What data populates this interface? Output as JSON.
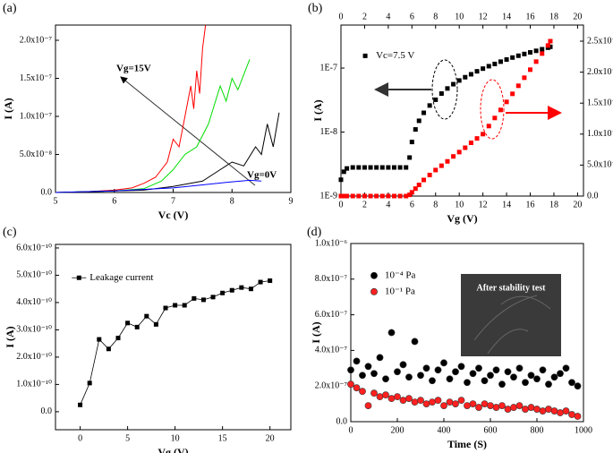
{
  "chart_data": [
    {
      "type": "line",
      "panel_label": "(a)",
      "xlabel": "Vc (V)",
      "ylabel": "I (A)",
      "xlim": [
        5,
        9
      ],
      "ylim": [
        0,
        2.2e-07
      ],
      "xticks": [
        5,
        6,
        7,
        8,
        9
      ],
      "yticks": [
        {
          "value": 0,
          "label": "0.0"
        },
        {
          "value": 5e-08,
          "label": "5.0x10⁻⁸"
        },
        {
          "value": 1e-07,
          "label": "1.0x10⁻⁷"
        },
        {
          "value": 1.5e-07,
          "label": "1.5x10⁻⁷"
        },
        {
          "value": 2e-07,
          "label": "2.0x10⁻⁷"
        }
      ],
      "series": [
        {
          "color": "#ff0000",
          "x": [
            5,
            5.5,
            6,
            6.3,
            6.5,
            6.7,
            6.9,
            7.0,
            7.1,
            7.2,
            7.3,
            7.35,
            7.4,
            7.45,
            7.5,
            7.55
          ],
          "values": [
            0,
            1e-09,
            3e-09,
            6e-09,
            1.2e-08,
            2e-08,
            4e-08,
            7e-08,
            6e-08,
            1e-07,
            1.4e-07,
            1.1e-07,
            1.6e-07,
            1.3e-07,
            1.9e-07,
            2.2e-07
          ]
        },
        {
          "color": "#00dd00",
          "x": [
            5,
            6,
            6.5,
            6.8,
            7.0,
            7.2,
            7.4,
            7.6,
            7.8,
            7.9,
            8.0,
            8.1,
            8.2,
            8.3
          ],
          "values": [
            0,
            2e-09,
            5e-09,
            1.5e-08,
            3e-08,
            5e-08,
            6e-08,
            9e-08,
            1.4e-07,
            1.2e-07,
            1.5e-07,
            1.35e-07,
            1.55e-07,
            1.75e-07
          ]
        },
        {
          "color": "#000000",
          "x": [
            5,
            6.5,
            7,
            7.5,
            7.8,
            8.0,
            8.2,
            8.4,
            8.5,
            8.6,
            8.7,
            8.8
          ],
          "values": [
            0,
            3e-09,
            8e-09,
            1.5e-08,
            3e-08,
            4e-08,
            3.5e-08,
            6e-08,
            5e-08,
            9e-08,
            6e-08,
            1.05e-07
          ]
        },
        {
          "color": "#0000ff",
          "x": [
            5,
            6,
            7,
            7.5,
            8,
            8.3,
            8.5
          ],
          "values": [
            0,
            2e-09,
            6e-09,
            1e-08,
            1.4e-08,
            1.6e-08,
            1.5e-08
          ]
        }
      ],
      "annotations": [
        "Vg=15V",
        "Vg=0V"
      ]
    },
    {
      "type": "scatter",
      "panel_label": "(b)",
      "xlabel": "Vg (V)",
      "ylabel": "I (A)",
      "top_axis": true,
      "ylog": true,
      "xlim": [
        0,
        20.5
      ],
      "ylim": [
        1e-09,
        4.7e-07
      ],
      "y2lim": [
        0,
        2.76e-07
      ],
      "xticks": [
        0,
        2,
        4,
        6,
        8,
        10,
        12,
        14,
        16,
        18,
        20
      ],
      "yticks": [
        {
          "value": 1e-09,
          "label": "1E-9"
        },
        {
          "value": 1e-08,
          "label": "1E-8"
        },
        {
          "value": 1e-07,
          "label": "1E-7"
        }
      ],
      "y2ticks": [
        {
          "value": 0,
          "label": "0.0"
        },
        {
          "value": 5e-08,
          "label": "5.0x10⁻⁸"
        },
        {
          "value": 1e-07,
          "label": "1.0x10⁻⁷"
        },
        {
          "value": 1.5e-07,
          "label": "1.5x10⁻⁷"
        },
        {
          "value": 2e-07,
          "label": "2.0x10⁻⁷"
        },
        {
          "value": 2.5e-07,
          "label": "2.5x10⁻⁷"
        }
      ],
      "x": [
        0,
        0.25,
        0.5,
        1,
        1.5,
        2,
        2.5,
        3,
        3.5,
        4,
        4.5,
        5,
        5.5,
        5.8,
        6,
        6.3,
        6.6,
        7,
        7.5,
        8,
        8.5,
        9,
        9.5,
        10,
        10.5,
        11,
        11.5,
        12,
        12.5,
        13,
        13.5,
        14,
        14.5,
        15,
        15.5,
        16,
        16.5,
        17,
        17.5,
        17.7
      ],
      "legend": "upper left",
      "series": [
        {
          "name": "Vc=7.5 V",
          "color": "#000000",
          "marker": "square",
          "values": [
            1.8e-09,
            2.4e-09,
            2.7e-09,
            2.8e-09,
            2.8e-09,
            2.8e-09,
            2.8e-09,
            2.8e-09,
            2.8e-09,
            2.8e-09,
            2.8e-09,
            2.8e-09,
            2.8e-09,
            4e-09,
            7e-09,
            1.1e-08,
            1.5e-08,
            2e-08,
            2.6e-08,
            3.2e-08,
            4e-08,
            4.8e-08,
            5.6e-08,
            6.4e-08,
            7.2e-08,
            8e-08,
            8.9e-08,
            9.8e-08,
            1.07e-07,
            1.16e-07,
            1.26e-07,
            1.36e-07,
            1.46e-07,
            1.56e-07,
            1.66e-07,
            1.76e-07,
            1.86e-07,
            1.97e-07,
            2.08e-07,
            2.15e-07
          ]
        },
        {
          "color": "#ff0000",
          "marker": "square",
          "axis": "y2",
          "values": [
            0,
            0,
            0,
            0,
            0,
            0,
            0,
            0,
            0,
            0,
            0,
            0,
            0,
            2e-09,
            6e-09,
            1.2e-08,
            1.8e-08,
            2.6e-08,
            3.4e-08,
            4.2e-08,
            4.9e-08,
            5.6e-08,
            6.4e-08,
            7.1e-08,
            7.8e-08,
            8.6e-08,
            9.3e-08,
            1e-07,
            1.13e-07,
            1.26e-07,
            1.39e-07,
            1.52e-07,
            1.65e-07,
            1.78e-07,
            1.91e-07,
            2.04e-07,
            2.17e-07,
            2.3e-07,
            2.43e-07,
            2.5e-07
          ]
        }
      ]
    },
    {
      "type": "line",
      "panel_label": "(c)",
      "xlabel": "Vg (V)",
      "ylabel": "I (A)",
      "xlim": [
        -2.6,
        22.2
      ],
      "ylim": [
        -6.6e-11,
        6.13e-10
      ],
      "xticks": [
        0,
        5,
        10,
        15,
        20
      ],
      "yticks": [
        {
          "value": 0,
          "label": "0.0"
        },
        {
          "value": 1e-10,
          "label": "1.0x10⁻¹⁰"
        },
        {
          "value": 2e-10,
          "label": "2.0x10⁻¹⁰"
        },
        {
          "value": 3e-10,
          "label": "3.0x10⁻¹⁰"
        },
        {
          "value": 4e-10,
          "label": "4.0x10⁻¹⁰"
        },
        {
          "value": 5e-10,
          "label": "5.0x10⁻¹⁰"
        },
        {
          "value": 6e-10,
          "label": "6.0x10⁻¹⁰"
        }
      ],
      "x": [
        0,
        1,
        2,
        3,
        4,
        5,
        6,
        7,
        8,
        9,
        10,
        11,
        12,
        13,
        14,
        15,
        16,
        17,
        18,
        19,
        20
      ],
      "legend": "upper left",
      "series": [
        {
          "name": "Leakage current",
          "color": "#000000",
          "marker": "square",
          "values": [
            2.5e-11,
            1.05e-10,
            2.65e-10,
            2.3e-10,
            2.7e-10,
            3.25e-10,
            3.1e-10,
            3.5e-10,
            3.2e-10,
            3.8e-10,
            3.9e-10,
            3.9e-10,
            4.15e-10,
            4.1e-10,
            4.2e-10,
            4.35e-10,
            4.45e-10,
            4.55e-10,
            4.5e-10,
            4.75e-10,
            4.8e-10
          ]
        }
      ]
    },
    {
      "type": "scatter",
      "panel_label": "(d)",
      "xlabel": "Time (S)",
      "ylabel": "I (A)",
      "xlim": [
        0,
        1000
      ],
      "ylim": [
        0,
        1e-06
      ],
      "xticks": [
        0,
        200,
        400,
        600,
        800,
        1000
      ],
      "yticks": [
        {
          "value": 0,
          "label": "0.0"
        },
        {
          "value": 2e-07,
          "label": "2.0x10⁻⁷"
        },
        {
          "value": 4e-07,
          "label": "4.0x10⁻⁷"
        },
        {
          "value": 6e-07,
          "label": "6.0x10⁻⁷"
        },
        {
          "value": 8e-07,
          "label": "8.0x10⁻⁷"
        },
        {
          "value": 1e-06,
          "label": "1.0x10⁻⁶"
        }
      ],
      "x": [
        0,
        25,
        50,
        75,
        100,
        125,
        150,
        175,
        200,
        225,
        250,
        275,
        300,
        325,
        350,
        375,
        400,
        425,
        450,
        475,
        500,
        525,
        550,
        575,
        600,
        625,
        650,
        675,
        700,
        725,
        750,
        775,
        800,
        825,
        850,
        875,
        900,
        925,
        950,
        975
      ],
      "legend": "upper left",
      "series": [
        {
          "name": "10⁻⁴ Pa",
          "color": "#000000",
          "marker": "circle",
          "values": [
            2.9e-07,
            3.4e-07,
            2.6e-07,
            3.1e-07,
            2.7e-07,
            3.6e-07,
            2.4e-07,
            5e-07,
            2.8e-07,
            3.2e-07,
            2.5e-07,
            4.5e-07,
            2.6e-07,
            3e-07,
            2.3e-07,
            2.9e-07,
            3.3e-07,
            2.4e-07,
            2.8e-07,
            3.1e-07,
            2.2e-07,
            2.7e-07,
            3e-07,
            2.3e-07,
            2.6e-07,
            2.9e-07,
            2.1e-07,
            2.8e-07,
            2.5e-07,
            3e-07,
            2.2e-07,
            2.6e-07,
            2.4e-07,
            2.9e-07,
            2.1e-07,
            2.5e-07,
            2.7e-07,
            3e-07,
            2.2e-07,
            2e-07
          ]
        },
        {
          "name": "10⁻¹ Pa",
          "color": "#ff2020",
          "marker": "circle",
          "values": [
            2.1e-07,
            1.9e-07,
            1.7e-07,
            9e-08,
            1.6e-07,
            1.4e-07,
            1.5e-07,
            1.3e-07,
            1.4e-07,
            1.2e-07,
            1.3e-07,
            1.1e-07,
            1.2e-07,
            1e-07,
            1.1e-07,
            1.2e-07,
            9e-08,
            1.1e-07,
            1e-07,
            1.2e-07,
            9e-08,
            1e-07,
            8e-08,
            1e-07,
            9e-08,
            8e-08,
            9e-08,
            7e-08,
            8e-08,
            9e-08,
            7e-08,
            8e-08,
            7e-08,
            6e-08,
            7e-08,
            6e-08,
            5e-08,
            6e-08,
            4e-08,
            3e-08
          ]
        }
      ],
      "annotations": [
        "After stability test"
      ]
    }
  ]
}
